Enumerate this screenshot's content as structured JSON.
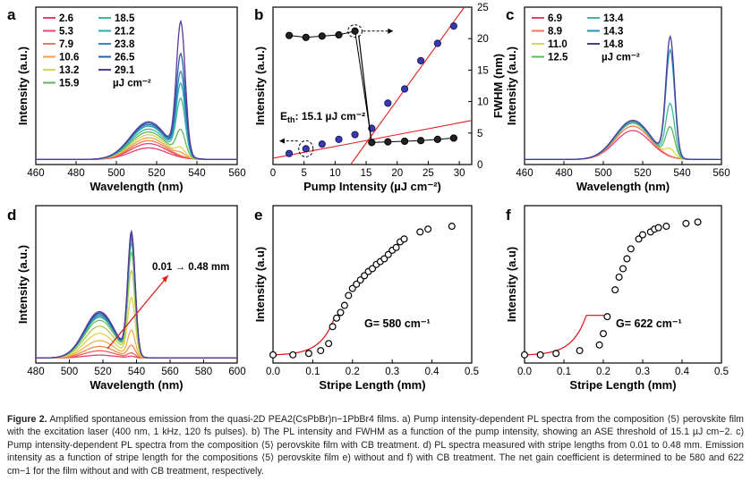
{
  "caption": {
    "label": "Figure 2.",
    "text": "Amplified spontaneous emission from the quasi-2D PEA2(CsPbBr)n−1PbBr4 films. a) Pump intensity-dependent PL spectra from the composition ⟨5⟩ perovskite film with the excitation laser (400 nm, 1 kHz, 120 fs pulses). b) The PL intensity and FWHM as a function of the pump intensity, showing an ASE threshold of 15.1 µJ cm−2. c) Pump intensity-dependent PL spectra from the composition ⟨5⟩ perovskite film with CB treatment. d) PL spectra measured with stripe lengths from 0.01 to 0.48 mm. Emission intensity as a function of stripe length for the compositions ⟨5⟩ perovskite film e) without and f) with CB treatment. The net gain coefficient is determined to be 580 and 622 cm−1 for the film without and with CB treatment, respectively."
  },
  "chart_data": [
    {
      "panel": "a",
      "type": "line",
      "xlabel": "Wavelength (nm)",
      "ylabel": "Intensity (a.u.)",
      "xlim": [
        460,
        560
      ],
      "xticks": [
        460,
        480,
        500,
        520,
        540,
        560
      ],
      "legend_unit": "µJ cm⁻²",
      "series": [
        {
          "name": "2.6",
          "color": "#e8416e",
          "broad": 0.08,
          "peak": 0.0
        },
        {
          "name": "5.3",
          "color": "#e8486a",
          "broad": 0.11,
          "peak": 0.0
        },
        {
          "name": "7.9",
          "color": "#ee7850",
          "broad": 0.13,
          "peak": 0.0
        },
        {
          "name": "10.6",
          "color": "#f0a04a",
          "broad": 0.15,
          "peak": 0.02
        },
        {
          "name": "13.2",
          "color": "#d8d84a",
          "broad": 0.17,
          "peak": 0.05
        },
        {
          "name": "15.9",
          "color": "#5cb85c",
          "broad": 0.19,
          "peak": 0.17
        },
        {
          "name": "18.5",
          "color": "#3fb89a",
          "broad": 0.21,
          "peak": 0.38
        },
        {
          "name": "21.2",
          "color": "#30a8b0",
          "broad": 0.23,
          "peak": 0.48
        },
        {
          "name": "23.8",
          "color": "#2a8fc0",
          "broad": 0.24,
          "peak": 0.56
        },
        {
          "name": "26.5",
          "color": "#2a5fa8",
          "broad": 0.25,
          "peak": 0.68
        },
        {
          "name": "29.1",
          "color": "#5a3a98",
          "broad": 0.26,
          "peak": 0.9
        }
      ],
      "broad_center": 516,
      "peak_center": 532
    },
    {
      "panel": "b",
      "type": "scatter",
      "xlabel": "Pump Intensity (µJ cm⁻²)",
      "ylabel": "Intensity (a.u.)",
      "y2label": "FWHM (nm)",
      "xlim": [
        0,
        32
      ],
      "xticks": [
        0,
        5,
        10,
        15,
        20,
        25,
        30
      ],
      "y2lim": [
        0,
        25
      ],
      "y2ticks": [
        0,
        5,
        10,
        15,
        20,
        25
      ],
      "annotation": "E",
      "annotation_sub": "th",
      "annotation_value": ": 15.1 µJ cm⁻²",
      "intensity": {
        "x": [
          2.6,
          5.3,
          7.9,
          10.6,
          13.2,
          15.9,
          18.5,
          21.2,
          23.8,
          26.5,
          29.1
        ],
        "y": [
          0.07,
          0.1,
          0.13,
          0.16,
          0.19,
          0.23,
          0.39,
          0.48,
          0.66,
          0.77,
          0.88
        ]
      },
      "fwhm": {
        "x": [
          2.6,
          5.3,
          7.9,
          10.6,
          13.2,
          15.9,
          18.5,
          21.2,
          23.8,
          26.5,
          29.1
        ],
        "y": [
          20.5,
          20.2,
          20.4,
          20.6,
          21.2,
          3.5,
          3.6,
          3.7,
          3.8,
          4.0,
          4.2
        ]
      }
    },
    {
      "panel": "c",
      "type": "line",
      "xlabel": "Wavelength (nm)",
      "ylabel": "Intensity (a.u.)",
      "xlim": [
        460,
        560
      ],
      "xticks": [
        460,
        480,
        500,
        520,
        540,
        560
      ],
      "legend_unit": "µJ cm⁻²",
      "series": [
        {
          "name": "6.9",
          "color": "#e8416e",
          "broad": 0.2,
          "peak": 0.0
        },
        {
          "name": "8.9",
          "color": "#ee7850",
          "broad": 0.23,
          "peak": 0.0
        },
        {
          "name": "11.0",
          "color": "#d8d84a",
          "broad": 0.25,
          "peak": 0.05
        },
        {
          "name": "12.5",
          "color": "#5cb85c",
          "broad": 0.25,
          "peak": 0.2
        },
        {
          "name": "13.4",
          "color": "#3fb89a",
          "broad": 0.26,
          "peak": 0.36
        },
        {
          "name": "14.3",
          "color": "#2a8fc0",
          "broad": 0.26,
          "peak": 0.73
        },
        {
          "name": "14.8",
          "color": "#4a3a98",
          "broad": 0.27,
          "peak": 0.82
        }
      ],
      "broad_center": 515,
      "peak_center": 534
    },
    {
      "panel": "d",
      "type": "line",
      "xlabel": "Wavelength (nm)",
      "ylabel": "Intensity (a.u.)",
      "xlim": [
        480,
        600
      ],
      "xticks": [
        480,
        500,
        520,
        540,
        560,
        580,
        600
      ],
      "annotation": "0.01 → 0.48 mm",
      "series": [
        {
          "color": "#e8416e",
          "broad": 0.02,
          "peak": 0.01
        },
        {
          "color": "#ee6050",
          "broad": 0.05,
          "peak": 0.03
        },
        {
          "color": "#f08848",
          "broad": 0.08,
          "peak": 0.08
        },
        {
          "color": "#f0b048",
          "broad": 0.12,
          "peak": 0.18
        },
        {
          "color": "#e0d048",
          "broad": 0.17,
          "peak": 0.4
        },
        {
          "color": "#a8d050",
          "broad": 0.22,
          "peak": 0.58
        },
        {
          "color": "#70c060",
          "broad": 0.26,
          "peak": 0.7
        },
        {
          "color": "#40b088",
          "broad": 0.28,
          "peak": 0.76
        },
        {
          "color": "#30a0b0",
          "broad": 0.29,
          "peak": 0.79
        },
        {
          "color": "#2a80c0",
          "broad": 0.3,
          "peak": 0.81
        },
        {
          "color": "#3050a0",
          "broad": 0.31,
          "peak": 0.83
        },
        {
          "color": "#5a3a98",
          "broad": 0.32,
          "peak": 0.84
        }
      ],
      "broad_center": 518,
      "peak_center": 537
    },
    {
      "panel": "e",
      "type": "scatter",
      "xlabel": "Stripe Length (mm)",
      "ylabel": "Intensity (a.u)",
      "xlim": [
        0,
        0.5
      ],
      "xticks": [
        0.0,
        0.1,
        0.2,
        0.3,
        0.4,
        0.5
      ],
      "annotation": "G= 580 cm⁻¹",
      "x": [
        0.0,
        0.05,
        0.09,
        0.12,
        0.14,
        0.15,
        0.16,
        0.17,
        0.18,
        0.19,
        0.2,
        0.21,
        0.22,
        0.23,
        0.24,
        0.25,
        0.26,
        0.27,
        0.28,
        0.29,
        0.3,
        0.31,
        0.32,
        0.33,
        0.37,
        0.39,
        0.45
      ],
      "y": [
        0.02,
        0.02,
        0.03,
        0.05,
        0.1,
        0.22,
        0.28,
        0.32,
        0.37,
        0.44,
        0.49,
        0.52,
        0.55,
        0.58,
        0.61,
        0.63,
        0.66,
        0.68,
        0.7,
        0.73,
        0.76,
        0.78,
        0.82,
        0.84,
        0.89,
        0.91,
        0.93
      ]
    },
    {
      "panel": "f",
      "type": "scatter",
      "xlabel": "Stripe Length (mm)",
      "ylabel": "Intensity (a.u)",
      "xlim": [
        0,
        0.5
      ],
      "xticks": [
        0.0,
        0.1,
        0.2,
        0.3,
        0.4,
        0.5
      ],
      "annotation": "G= 622 cm⁻¹",
      "x": [
        0.0,
        0.04,
        0.08,
        0.14,
        0.19,
        0.2,
        0.21,
        0.23,
        0.24,
        0.25,
        0.26,
        0.27,
        0.29,
        0.3,
        0.32,
        0.33,
        0.34,
        0.36,
        0.41,
        0.44
      ],
      "y": [
        0.02,
        0.02,
        0.03,
        0.05,
        0.09,
        0.17,
        0.29,
        0.48,
        0.57,
        0.63,
        0.7,
        0.77,
        0.84,
        0.87,
        0.89,
        0.91,
        0.92,
        0.93,
        0.95,
        0.96
      ]
    }
  ]
}
